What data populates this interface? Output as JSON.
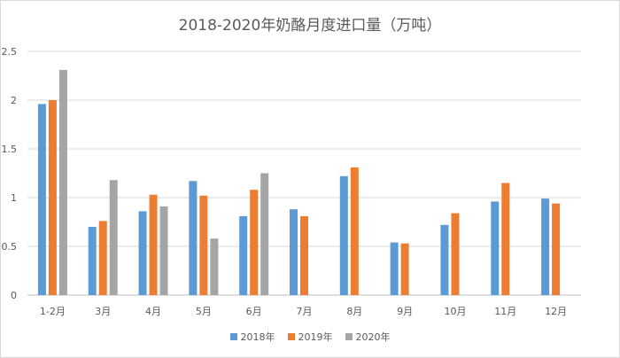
{
  "chart_data": {
    "type": "bar",
    "title": "2018-2020年奶酪月度进口量（万吨）",
    "categories": [
      "1-2月",
      "3月",
      "4月",
      "5月",
      "6月",
      "7月",
      "8月",
      "9月",
      "10月",
      "11月",
      "12月"
    ],
    "series": [
      {
        "name": "2018年",
        "color": "#5b9bd5",
        "values": [
          1.96,
          0.7,
          0.86,
          1.17,
          0.81,
          0.88,
          1.22,
          0.54,
          0.72,
          0.96,
          0.99
        ]
      },
      {
        "name": "2019年",
        "color": "#ed7d31",
        "values": [
          2.0,
          0.76,
          1.03,
          1.02,
          1.08,
          0.81,
          1.31,
          0.53,
          0.84,
          1.15,
          0.94
        ]
      },
      {
        "name": "2020年",
        "color": "#a5a5a5",
        "values": [
          2.31,
          1.18,
          0.91,
          0.58,
          1.25,
          null,
          null,
          null,
          null,
          null,
          null
        ]
      }
    ],
    "ylim": [
      0,
      2.5
    ],
    "yticks": [
      "0",
      "0.5",
      "1",
      "1.5",
      "2",
      "2.5"
    ],
    "ytick_values": [
      0,
      0.5,
      1,
      1.5,
      2,
      2.5
    ],
    "grid": true,
    "legend": "bottom"
  }
}
